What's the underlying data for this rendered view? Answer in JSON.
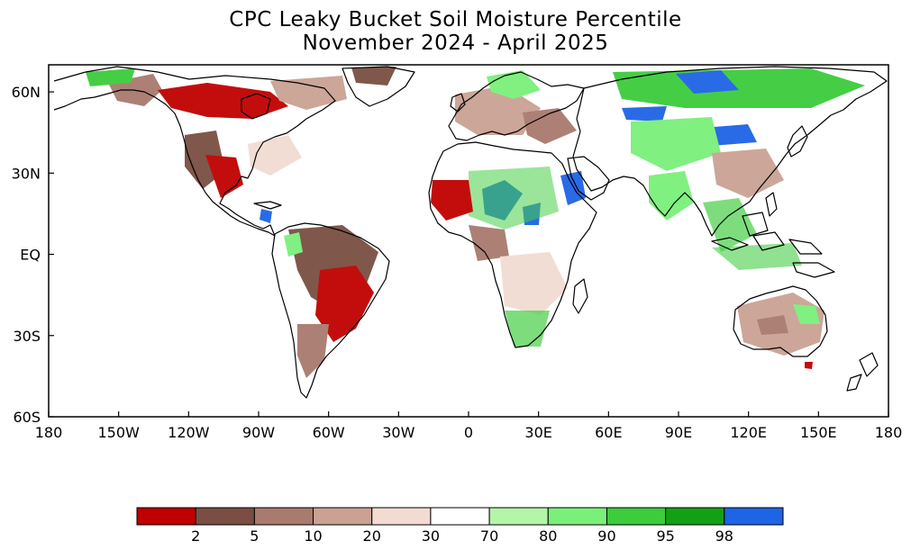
{
  "title": {
    "line1": "CPC Leaky Bucket Soil Moisture Percentile",
    "line2": "November 2024 - April 2025"
  },
  "map": {
    "projection": "equirectangular",
    "lon_range": [
      -180,
      180
    ],
    "lat_range": [
      -60,
      70
    ],
    "x_ticks": [
      {
        "lon": -180,
        "label": "180"
      },
      {
        "lon": -150,
        "label": "150W"
      },
      {
        "lon": -120,
        "label": "120W"
      },
      {
        "lon": -90,
        "label": "90W"
      },
      {
        "lon": -60,
        "label": "60W"
      },
      {
        "lon": -30,
        "label": "30W"
      },
      {
        "lon": 0,
        "label": "0"
      },
      {
        "lon": 30,
        "label": "30E"
      },
      {
        "lon": 60,
        "label": "60E"
      },
      {
        "lon": 90,
        "label": "90E"
      },
      {
        "lon": 120,
        "label": "120E"
      },
      {
        "lon": 150,
        "label": "150E"
      },
      {
        "lon": 180,
        "label": "180"
      }
    ],
    "y_ticks": [
      {
        "lat": 60,
        "label": "60N"
      },
      {
        "lat": 30,
        "label": "30N"
      },
      {
        "lat": 0,
        "label": "EQ"
      },
      {
        "lat": -30,
        "label": "30S"
      },
      {
        "lat": -60,
        "label": "60S"
      }
    ],
    "land_color": "#ffffff",
    "coast_color": "#000000"
  },
  "legend": {
    "colors": [
      "#c00000",
      "#7a4e42",
      "#a97a6e",
      "#caa294",
      "#f2dcd2",
      "#ffffff",
      "#b4f5a8",
      "#7af07a",
      "#3ccc3c",
      "#14a014",
      "#1e64e6"
    ],
    "labels": [
      "2",
      "5",
      "10",
      "20",
      "30",
      "70",
      "80",
      "90",
      "95",
      "98"
    ]
  }
}
